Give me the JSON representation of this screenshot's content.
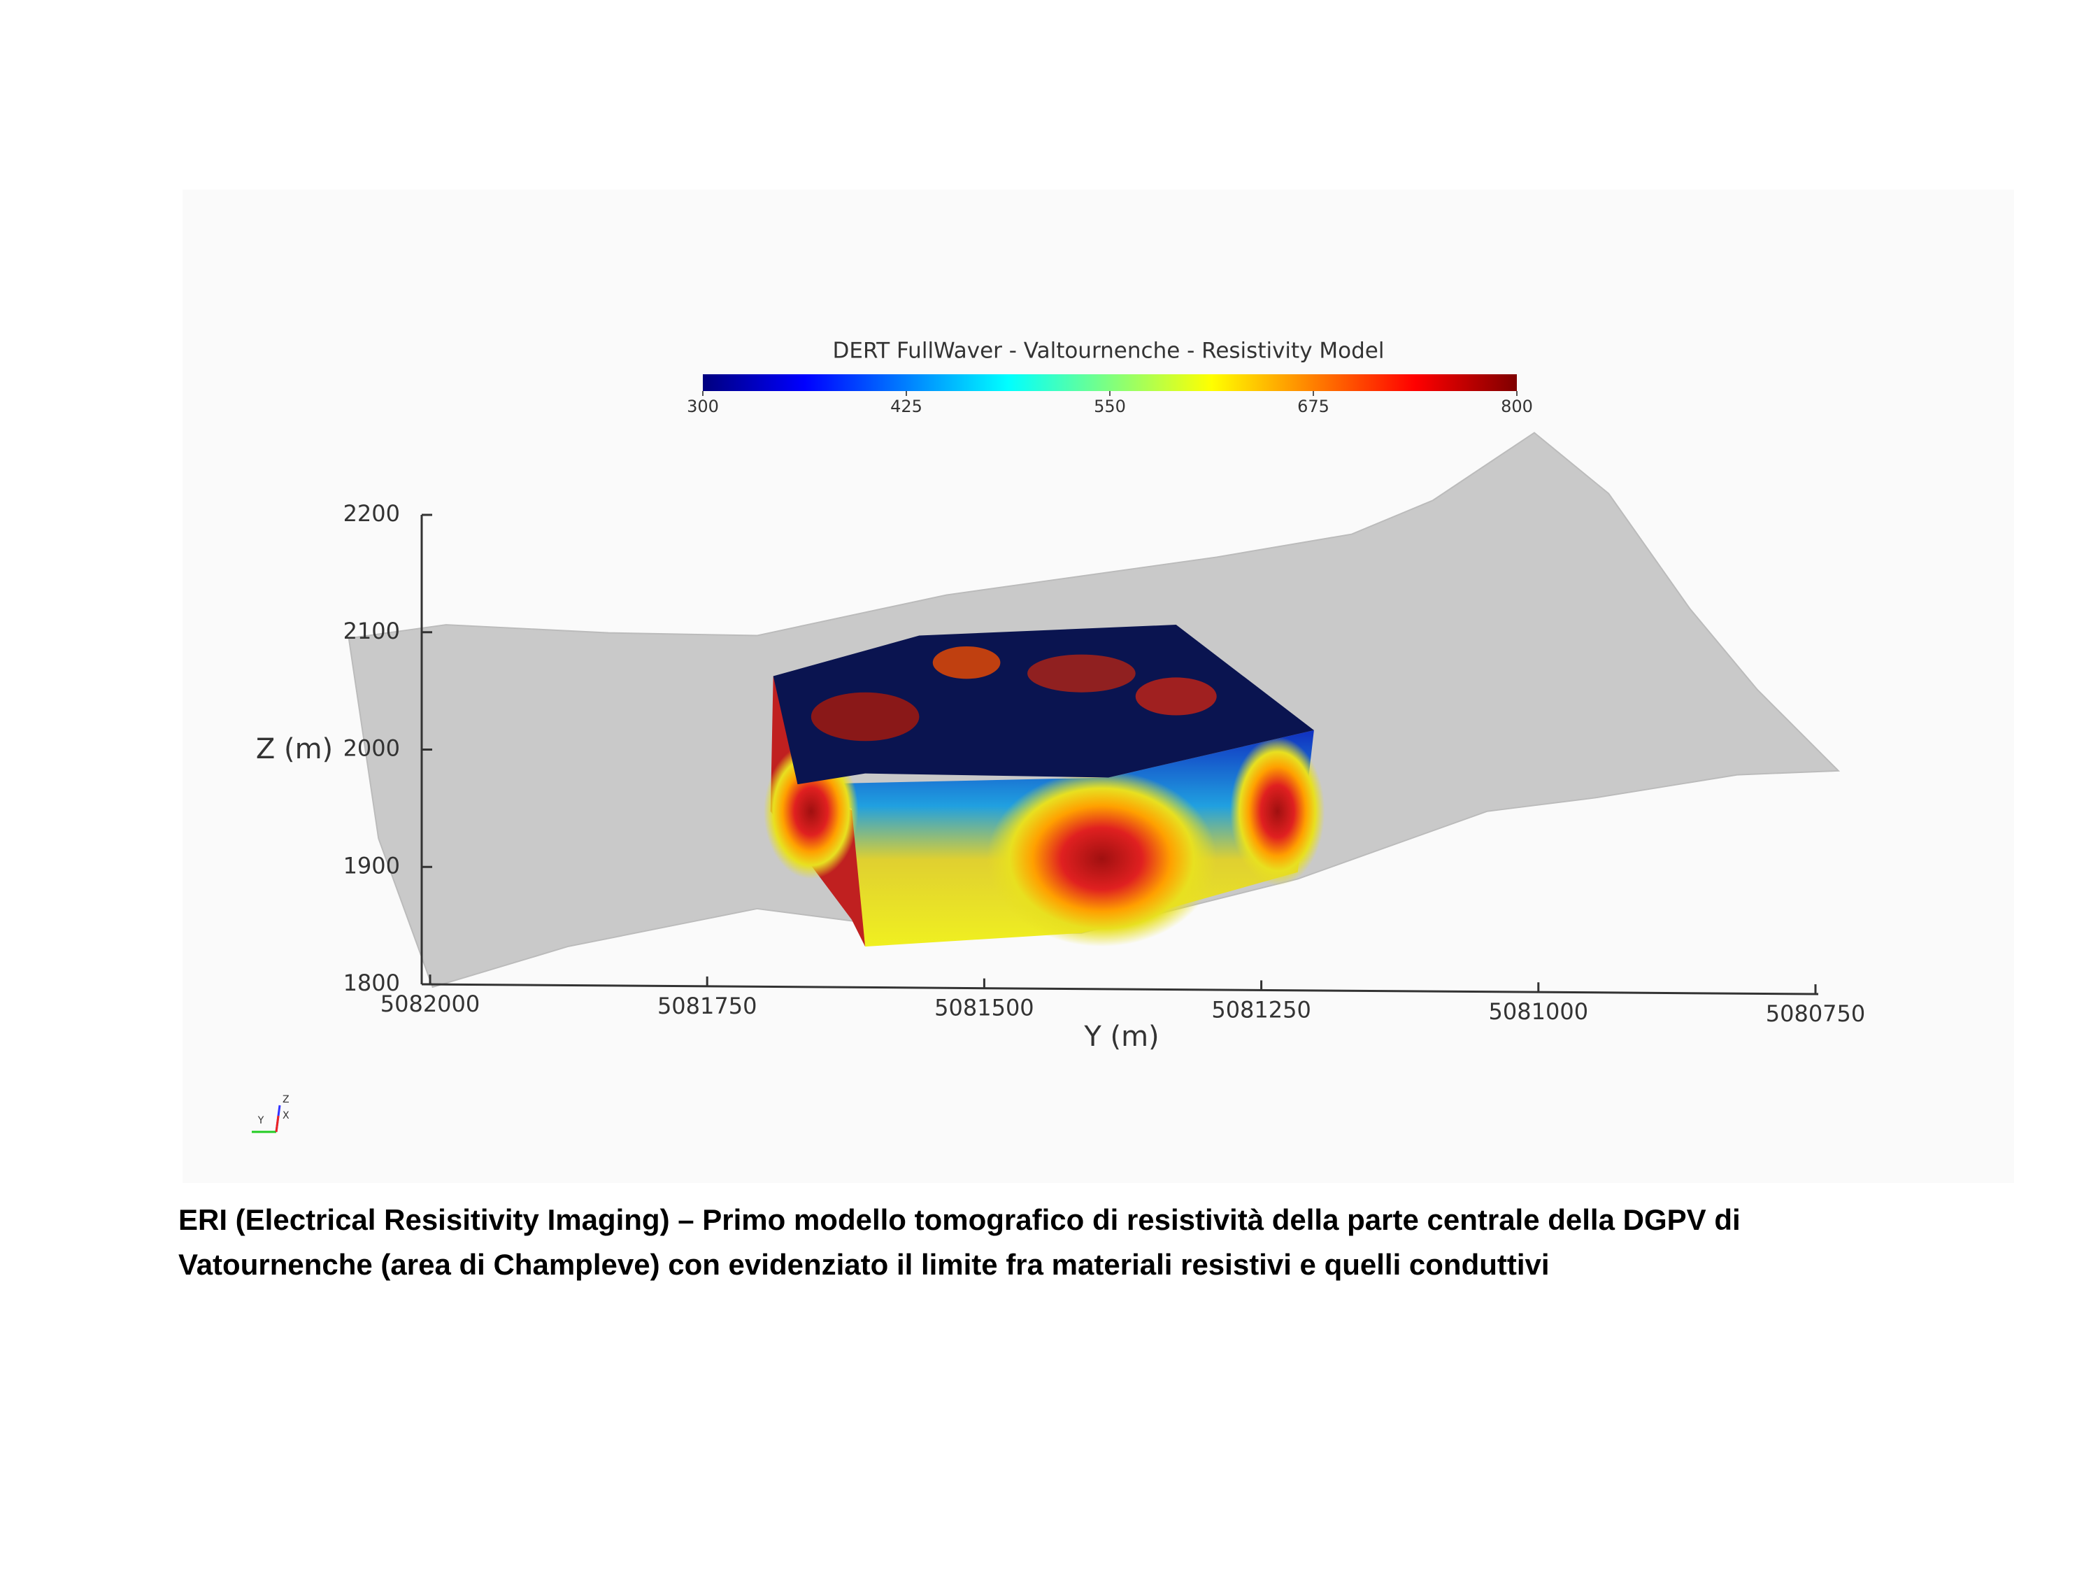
{
  "figure": {
    "colorbar": {
      "title": "DERT FullWaver - Valtournenche - Resistivity Model",
      "ticks": [
        300,
        425,
        550,
        675,
        800
      ]
    },
    "z_axis": {
      "label": "Z (m)",
      "ticks": [
        1800,
        1900,
        2000,
        2100,
        2200
      ]
    },
    "y_axis": {
      "label": "Y (m)",
      "ticks": [
        5082000,
        5081750,
        5081500,
        5081250,
        5081000,
        5080750
      ]
    },
    "orientation_axes": {
      "labels": [
        "Y",
        "X",
        "Z"
      ]
    }
  },
  "caption": {
    "lines": [
      "ERI (Electrical Resisitivity Imaging) – Primo modello tomografico di resistività della parte centrale della DGPV di",
      "Vatournenche (area di Champleve) con evidenziato il limite fra materiali resistivi e quelli conduttivi"
    ]
  }
}
